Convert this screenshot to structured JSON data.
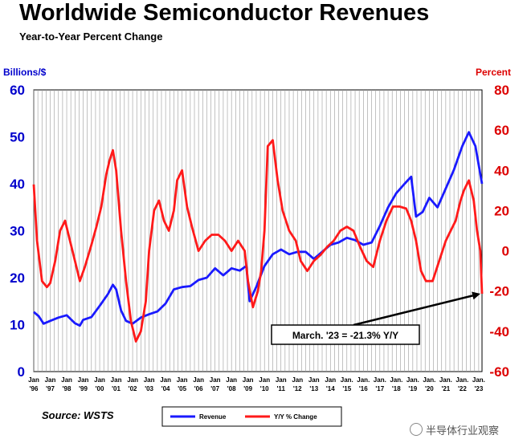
{
  "title": "Worldwide Semiconductor Revenues",
  "subtitle": "Year-to-Year Percent Change",
  "source": "Source: WSTS",
  "watermark": "半导体行业观察",
  "colors": {
    "revenue": "#1a1aff",
    "yoy": "#ff1a1a",
    "grid": "#999999",
    "left_axis": "#0000cc",
    "right_axis": "#dd0000"
  },
  "chart_data": {
    "type": "line",
    "left_axis": {
      "label": "Billions/$",
      "range": [
        0,
        60
      ],
      "ticks": [
        "0",
        "10",
        "20",
        "30",
        "40",
        "50",
        "60"
      ]
    },
    "right_axis": {
      "label": "Percent",
      "range": [
        -60,
        80
      ],
      "ticks": [
        "-60",
        "-40",
        "-20",
        "0",
        "20",
        "40",
        "60",
        "80"
      ]
    },
    "x_range": [
      1996.0,
      2023.2
    ],
    "x_ticks": [
      {
        "month": "Jan",
        "year": "'96"
      },
      {
        "month": "Jan",
        "year": "'97"
      },
      {
        "month": "Jan",
        "year": "'98"
      },
      {
        "month": "Jan",
        "year": "'99"
      },
      {
        "month": "Jan",
        "year": "'00"
      },
      {
        "month": "Jan",
        "year": "'01"
      },
      {
        "month": "Jan",
        "year": "'02"
      },
      {
        "month": "Jan",
        "year": "'03"
      },
      {
        "month": "Jan",
        "year": "'04"
      },
      {
        "month": "Jan",
        "year": "'05"
      },
      {
        "month": "Jan",
        "year": "'06"
      },
      {
        "month": "Jan",
        "year": "'07"
      },
      {
        "month": "Jan",
        "year": "'08"
      },
      {
        "month": "Jan",
        "year": "'09"
      },
      {
        "month": "Jan",
        "year": "'10"
      },
      {
        "month": "Jan",
        "year": "'11"
      },
      {
        "month": "Jan",
        "year": "'12"
      },
      {
        "month": "Jan",
        "year": "'13"
      },
      {
        "month": "Jan",
        "year": "'14"
      },
      {
        "month": "Jan.",
        "year": "'15"
      },
      {
        "month": "Jan.",
        "year": "'16"
      },
      {
        "month": "Jan.",
        "year": "'17"
      },
      {
        "month": "Jan.",
        "year": "'18"
      },
      {
        "month": "Jan.",
        "year": "'19"
      },
      {
        "month": "Jan.",
        "year": "'20"
      },
      {
        "month": "Jan.",
        "year": "'21"
      },
      {
        "month": "Jan.",
        "year": "'22"
      },
      {
        "month": "Jan.",
        "year": "'23"
      }
    ],
    "grid": true,
    "legend_position": "bottom",
    "series": [
      {
        "name": "Revenue",
        "axis": "left",
        "x": [
          1996.0,
          1996.3,
          1996.6,
          1997.0,
          1997.5,
          1998.0,
          1998.5,
          1998.8,
          1999.0,
          1999.5,
          2000.0,
          2000.5,
          2000.8,
          2001.0,
          2001.3,
          2001.6,
          2002.0,
          2002.5,
          2003.0,
          2003.5,
          2004.0,
          2004.5,
          2005.0,
          2005.5,
          2006.0,
          2006.5,
          2007.0,
          2007.5,
          2008.0,
          2008.5,
          2008.9,
          2009.1,
          2009.5,
          2010.0,
          2010.5,
          2011.0,
          2011.5,
          2012.0,
          2012.5,
          2013.0,
          2013.5,
          2014.0,
          2014.5,
          2015.0,
          2015.5,
          2016.0,
          2016.5,
          2017.0,
          2017.5,
          2018.0,
          2018.5,
          2018.9,
          2019.2,
          2019.6,
          2020.0,
          2020.5,
          2021.0,
          2021.5,
          2022.0,
          2022.4,
          2022.8,
          2023.0,
          2023.2
        ],
        "values": [
          12.7,
          11.8,
          10.2,
          10.8,
          11.5,
          12.0,
          10.3,
          9.8,
          11.0,
          11.6,
          14.0,
          16.5,
          18.5,
          17.5,
          13.0,
          10.8,
          10.2,
          11.5,
          12.2,
          12.8,
          14.5,
          17.5,
          18.0,
          18.2,
          19.5,
          20.0,
          22.0,
          20.5,
          22.0,
          21.5,
          22.5,
          15.0,
          18.0,
          22.5,
          25.0,
          26.0,
          25.0,
          25.5,
          25.5,
          24.0,
          25.5,
          27.0,
          27.5,
          28.5,
          28.0,
          27.0,
          27.5,
          31.0,
          35.0,
          38.0,
          40.0,
          41.5,
          33.0,
          34.0,
          37.0,
          35.0,
          39.0,
          43.0,
          48.0,
          51.0,
          48.0,
          44.0,
          40.0
        ]
      },
      {
        "name": "Y/Y % Change",
        "axis": "right",
        "x": [
          1996.0,
          1996.2,
          1996.5,
          1996.8,
          1997.0,
          1997.3,
          1997.6,
          1997.9,
          1998.2,
          1998.5,
          1998.8,
          1999.1,
          1999.5,
          1999.8,
          2000.1,
          2000.4,
          2000.6,
          2000.8,
          2001.0,
          2001.3,
          2001.6,
          2001.9,
          2002.2,
          2002.5,
          2002.8,
          2003.0,
          2003.3,
          2003.6,
          2003.9,
          2004.2,
          2004.5,
          2004.7,
          2005.0,
          2005.3,
          2005.6,
          2006.0,
          2006.4,
          2006.8,
          2007.2,
          2007.6,
          2008.0,
          2008.4,
          2008.8,
          2009.0,
          2009.3,
          2009.6,
          2009.8,
          2010.0,
          2010.2,
          2010.5,
          2010.8,
          2011.1,
          2011.5,
          2011.9,
          2012.2,
          2012.6,
          2013.0,
          2013.4,
          2013.8,
          2014.2,
          2014.6,
          2015.0,
          2015.4,
          2015.8,
          2016.2,
          2016.6,
          2017.0,
          2017.4,
          2017.8,
          2018.2,
          2018.6,
          2018.9,
          2019.2,
          2019.5,
          2019.8,
          2020.2,
          2020.6,
          2021.0,
          2021.3,
          2021.6,
          2021.9,
          2022.1,
          2022.4,
          2022.7,
          2022.9,
          2023.1,
          2023.2
        ],
        "values": [
          33,
          5,
          -15,
          -18,
          -16,
          -5,
          10,
          15,
          5,
          -5,
          -15,
          -8,
          3,
          12,
          22,
          38,
          45,
          50,
          40,
          10,
          -15,
          -35,
          -45,
          -40,
          -25,
          0,
          20,
          25,
          15,
          10,
          20,
          35,
          40,
          22,
          12,
          0,
          5,
          8,
          8,
          5,
          0,
          5,
          0,
          -15,
          -28,
          -20,
          -10,
          10,
          52,
          55,
          35,
          20,
          10,
          5,
          -5,
          -10,
          -5,
          -2,
          2,
          5,
          10,
          12,
          10,
          2,
          -5,
          -8,
          5,
          15,
          22,
          22,
          21,
          15,
          5,
          -10,
          -15,
          -15,
          -5,
          5,
          10,
          15,
          25,
          30,
          35,
          25,
          10,
          0,
          -21.3
        ]
      }
    ],
    "annotation": {
      "text": "March. '23 = -21.3% Y/Y",
      "x": 2023.2,
      "y": -21.3
    }
  }
}
